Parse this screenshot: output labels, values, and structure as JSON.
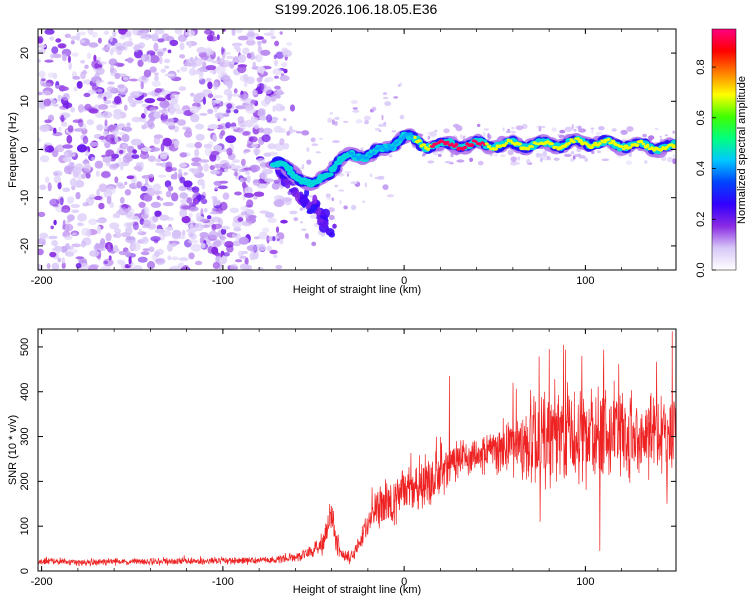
{
  "title": "S199.2026.106.18.05.E36",
  "chart_data": [
    {
      "type": "heatmap",
      "xlabel": "Height of straight line (km)",
      "ylabel": "Frequency (Hz)",
      "xlim": [
        -202,
        150
      ],
      "ylim": [
        -25,
        25
      ],
      "xticks": [
        -200,
        -100,
        0,
        100
      ],
      "yticks": [
        -20,
        -10,
        0,
        10,
        20
      ],
      "colorbar": {
        "label": "Normalized spectral amplitude",
        "range": [
          0.0,
          0.95
        ],
        "ticks": [
          0.0,
          0.2,
          0.4,
          0.6,
          0.8
        ],
        "colormap": [
          "#ffffff",
          "#d8c8f8",
          "#8a2be2",
          "#3300ff",
          "#0044ff",
          "#00c8ff",
          "#00ff80",
          "#40ff00",
          "#ffff00",
          "#ff8000",
          "#ff0000",
          "#ff0080"
        ]
      },
      "signal_ridge": {
        "description": "Dominant narrow-band signal near 1 Hz",
        "x": [
          -70,
          -60,
          -50,
          -45,
          -40,
          -35,
          -30,
          -20,
          -10,
          0,
          10,
          20,
          40,
          60,
          80,
          100,
          120,
          140,
          150
        ],
        "y": [
          -3,
          -5,
          -8,
          -6,
          -4,
          -2,
          -1.5,
          -1,
          0,
          3,
          1,
          1,
          1,
          1,
          1,
          1.5,
          1,
          0.5,
          0.5
        ]
      },
      "noise_region_x": [
        -202,
        -60
      ]
    },
    {
      "type": "line",
      "xlabel": "Height of straight line (km)",
      "ylabel": "SNR (10 * v/v)",
      "xlim": [
        -202,
        150
      ],
      "ylim": [
        0,
        540
      ],
      "xticks": [
        -200,
        -100,
        0,
        100
      ],
      "yticks": [
        0,
        100,
        200,
        300,
        400,
        500
      ],
      "series": [
        {
          "name": "SNR",
          "color": "#ee2222",
          "x": [
            -202,
            -190,
            -180,
            -170,
            -160,
            -150,
            -140,
            -130,
            -120,
            -110,
            -100,
            -90,
            -80,
            -70,
            -60,
            -50,
            -45,
            -40,
            -38,
            -35,
            -30,
            -25,
            -20,
            -15,
            -10,
            -5,
            0,
            5,
            10,
            15,
            20,
            25,
            30,
            40,
            50,
            60,
            70,
            80,
            90,
            100,
            110,
            120,
            130,
            140,
            150
          ],
          "values": [
            20,
            22,
            20,
            19,
            21,
            22,
            20,
            21,
            22,
            21,
            23,
            22,
            24,
            26,
            30,
            45,
            60,
            120,
            70,
            40,
            30,
            60,
            100,
            140,
            160,
            150,
            180,
            170,
            200,
            205,
            220,
            230,
            245,
            260,
            270,
            280,
            290,
            300,
            300,
            295,
            310,
            300,
            305,
            300,
            310
          ],
          "spread": [
            8,
            8,
            8,
            8,
            8,
            8,
            8,
            8,
            8,
            8,
            8,
            8,
            8,
            9,
            10,
            15,
            25,
            40,
            30,
            15,
            15,
            25,
            40,
            50,
            55,
            55,
            55,
            55,
            60,
            60,
            60,
            55,
            50,
            45,
            50,
            70,
            110,
            120,
            120,
            110,
            110,
            100,
            100,
            100,
            110
          ],
          "peaks": [
            {
              "x": -40,
              "y": 145
            },
            {
              "x": 25,
              "y": 435
            },
            {
              "x": 60,
              "y": 420
            },
            {
              "x": 75,
              "y": 510
            },
            {
              "x": 80,
              "y": 495
            },
            {
              "x": 88,
              "y": 505
            },
            {
              "x": 98,
              "y": 480
            },
            {
              "x": 110,
              "y": 440
            },
            {
              "x": 148,
              "y": 535
            }
          ],
          "troughs": [
            {
              "x": 75,
              "y": 110
            },
            {
              "x": 108,
              "y": 45
            },
            {
              "x": 145,
              "y": 150
            }
          ]
        }
      ]
    }
  ]
}
